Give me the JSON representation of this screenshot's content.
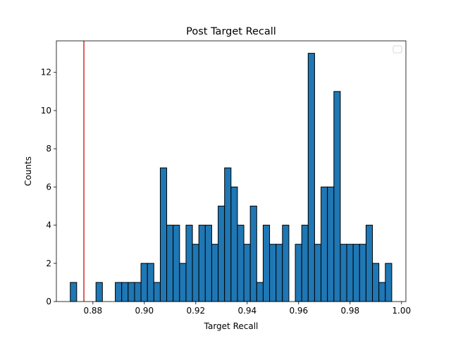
{
  "chart_data": {
    "type": "bar",
    "title": "Post Target Recall",
    "xlabel": "Target Recall",
    "ylabel": "Counts",
    "xlim": [
      0.8658,
      1.0017
    ],
    "ylim": [
      0,
      13.65
    ],
    "xticks": [
      0.88,
      0.9,
      0.92,
      0.94,
      0.96,
      0.98,
      1.0
    ],
    "xtick_labels": [
      "0.88",
      "0.90",
      "0.92",
      "0.94",
      "0.96",
      "0.98",
      "1.00"
    ],
    "yticks": [
      0,
      2,
      4,
      6,
      8,
      10,
      12
    ],
    "ytick_labels": [
      "0",
      "2",
      "4",
      "6",
      "8",
      "10",
      "12"
    ],
    "bin_start": 0.8712,
    "bin_width": 0.0025,
    "counts": [
      1,
      0,
      0,
      0,
      1,
      0,
      0,
      1,
      1,
      1,
      1,
      2,
      2,
      1,
      7,
      4,
      4,
      2,
      4,
      3,
      4,
      4,
      3,
      5,
      7,
      6,
      4,
      3,
      5,
      1,
      4,
      3,
      3,
      4,
      0,
      3,
      4,
      13,
      3,
      6,
      6,
      11,
      3,
      3,
      3,
      3,
      4,
      2,
      1,
      2
    ],
    "bar_color": "#1f77b4",
    "bar_edge_color": "#000000",
    "vline": {
      "x": 0.8765,
      "color": "#d62728"
    },
    "legend": {
      "placement": "top-right",
      "entries": []
    },
    "grid": false
  }
}
